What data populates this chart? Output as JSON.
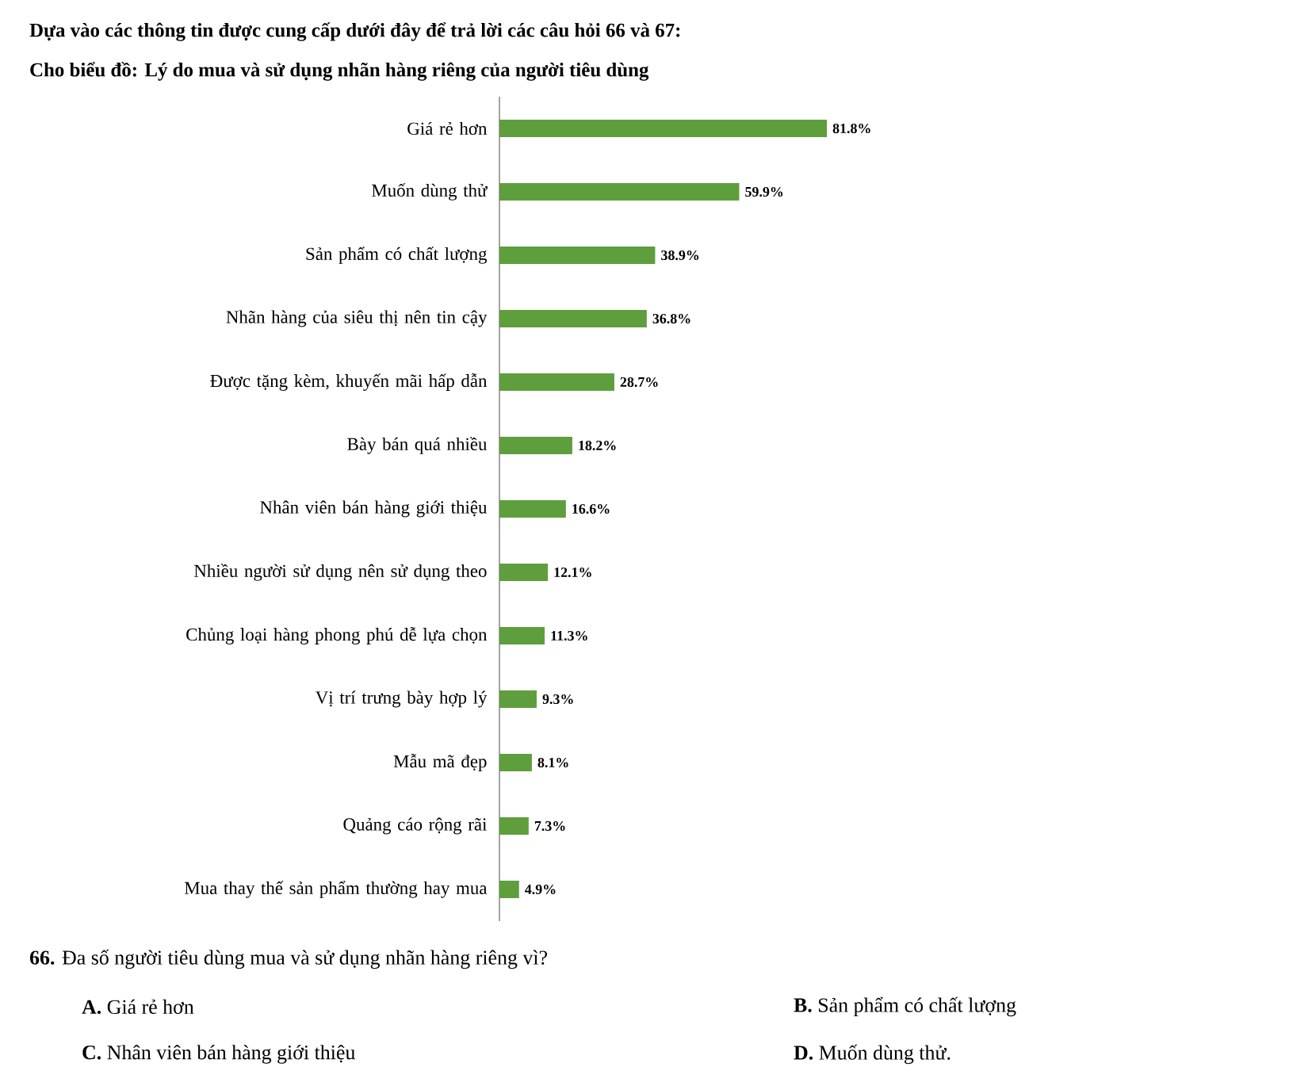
{
  "chart_data": {
    "type": "bar",
    "orientation": "horizontal",
    "title": "Dựa vào các thông tin được cung cấp dưới đây để trả lời các câu hỏi 66 và 67:",
    "subtitle": "Cho biểu đồ: Lý do mua và sử dụng nhãn hàng riêng của người tiêu dùng",
    "categories": [
      "Giá rẻ hơn",
      "Muốn dùng thử",
      "Sản phẩm có chất lượng",
      "Nhãn  hàng của siêu thị nên tin cậy",
      "Được tặng kèm, khuyến mãi hấp dẫn",
      "Bày bán quá nhiều",
      "Nhân viên bán hàng giới thiệu",
      "Nhiều người sử dụng nên sử dụng theo",
      "Chủng loại hàng phong phú dễ lựa chọn",
      "Vị trí trưng bày hợp lý",
      "Mẫu mã đẹp",
      "Quảng cáo rộng rãi",
      "Mua thay thế sản phẩm thường hay mua"
    ],
    "values": [
      81.8,
      59.9,
      38.9,
      36.8,
      28.7,
      18.2,
      16.6,
      12.1,
      11.3,
      9.3,
      8.1,
      7.3,
      4.9
    ],
    "value_labels": [
      "81.8%",
      "59.9%",
      "38.9%",
      "36.8%",
      "28.7%",
      "18.2%",
      "16.6%",
      "12.1%",
      "11.3%",
      "9.3%",
      "8.1%",
      "7.3%",
      "4.9%"
    ],
    "color": "#5e9e3c",
    "annotations": [
      "**66.** Đa số người tiêu dùng mua và sử dụng nhãn hàng riêng vì?",
      "**A.** Giá rẻ hơn",
      "**B.** Sản phẩm có chất lượng",
      "**C.** Nhân viên bán hàng giới thiệu",
      "**D.** Muốn dùng thử."
    ]
  }
}
